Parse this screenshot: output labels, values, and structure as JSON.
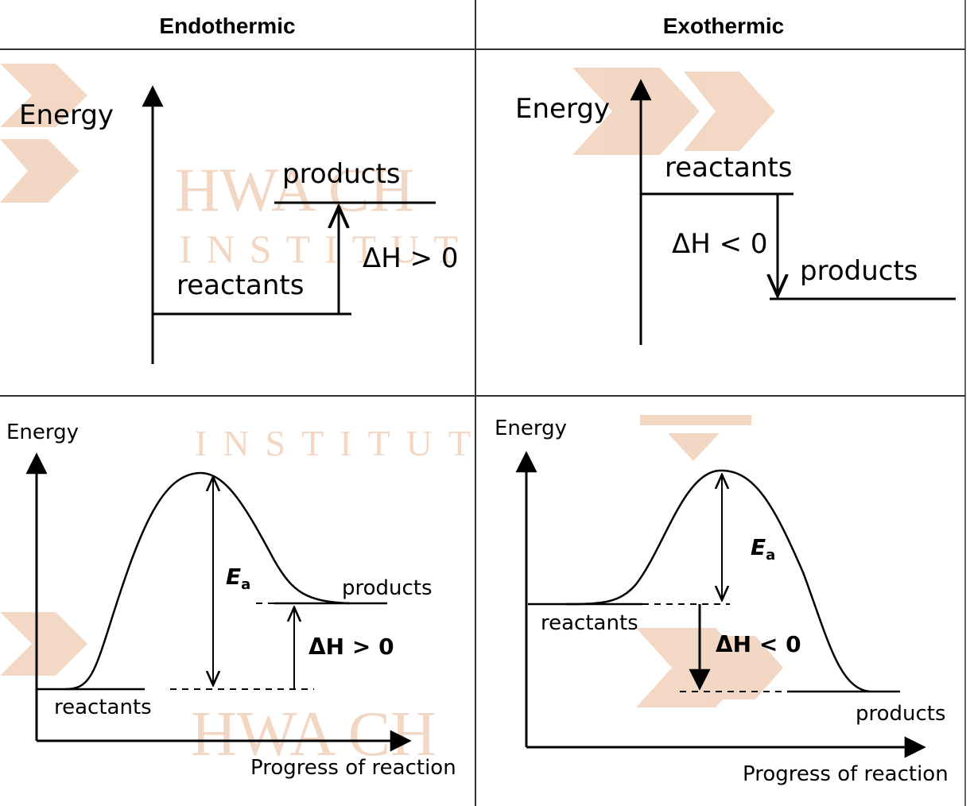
{
  "table": {
    "headers": {
      "endothermic": "Endothermic",
      "exothermic": "Exothermic"
    }
  },
  "panels": {
    "endo_simple": {
      "energy_label": "Energy",
      "products_label": "products",
      "reactants_label": "reactants",
      "delta_h_symbol": "ΔH",
      "delta_h_relation": " > 0"
    },
    "exo_simple": {
      "energy_label": "Energy",
      "reactants_label": "reactants",
      "products_label": "products",
      "delta_h_symbol": "ΔH",
      "delta_h_relation": " < 0"
    },
    "endo_profile": {
      "energy_label": "Energy",
      "x_axis_label": "Progress of reaction",
      "reactants_label": "reactants",
      "products_label": "products",
      "ea_symbol": "E",
      "ea_subscript": "a",
      "delta_h_symbol": "ΔH",
      "delta_h_relation": " > 0"
    },
    "exo_profile": {
      "energy_label": "Energy",
      "x_axis_label": "Progress of reaction",
      "reactants_label": "reactants",
      "products_label": "products",
      "ea_symbol": "E",
      "ea_subscript": "a",
      "delta_h_symbol": "ΔH",
      "delta_h_relation": " < 0"
    }
  },
  "watermark": {
    "name": "HWA CH",
    "institute": "INSTITUT",
    "color": "#e8b896"
  },
  "colors": {
    "line": "#000000",
    "grid": "#333333",
    "watermark": "#e8b896"
  }
}
